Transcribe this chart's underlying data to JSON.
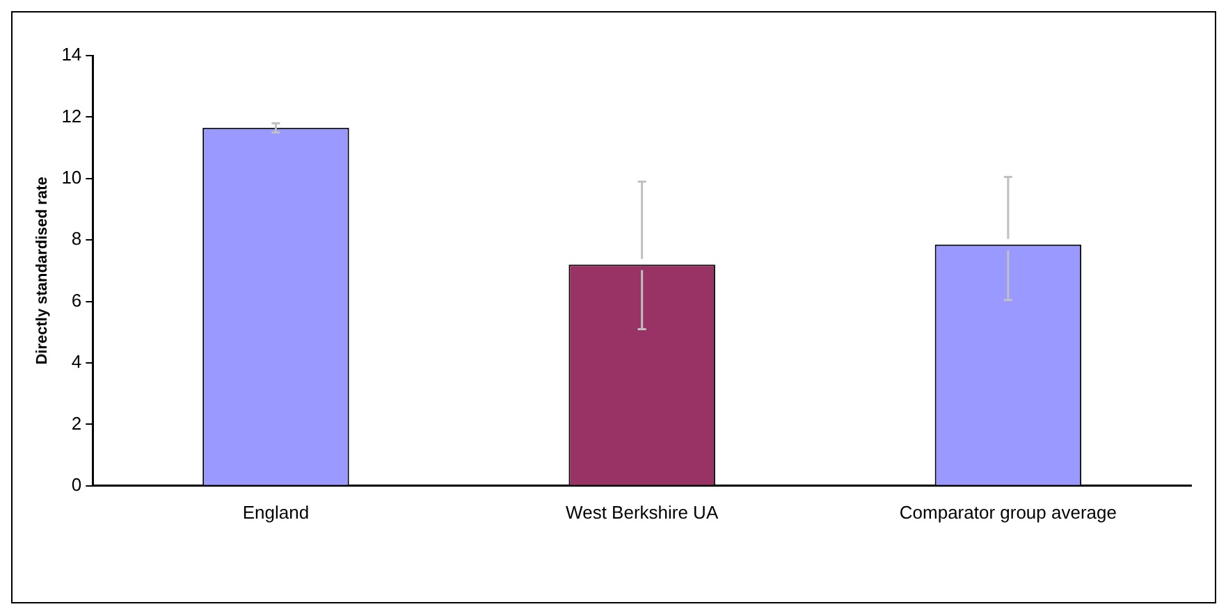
{
  "chart_data": {
    "type": "bar",
    "ylabel": "Directly standardised rate",
    "categories": [
      "England",
      "West Berkshire UA",
      "Comparator group average"
    ],
    "values": [
      11.65,
      7.2,
      7.85
    ],
    "colors": [
      "#9999ff",
      "#993366",
      "#9999ff"
    ],
    "errors": [
      [
        11.5,
        11.8
      ],
      [
        5.1,
        9.9
      ],
      [
        6.05,
        10.05
      ]
    ],
    "ylim": [
      0,
      14
    ],
    "yticks": [
      0,
      2,
      4,
      6,
      8,
      10,
      12,
      14
    ],
    "grid": false,
    "legend": false
  }
}
